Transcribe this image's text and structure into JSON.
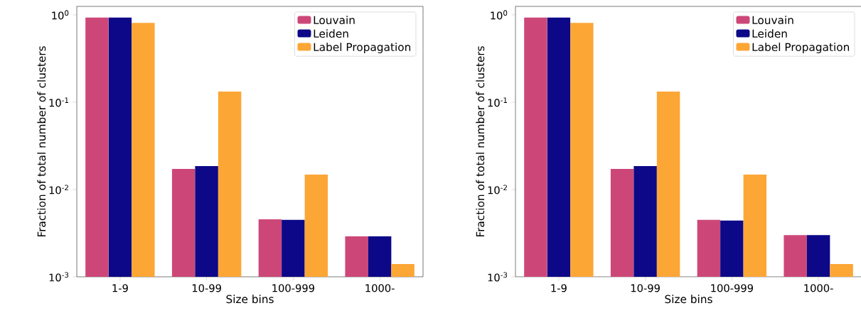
{
  "chart_data": [
    {
      "type": "bar",
      "xlabel": "Size bins",
      "ylabel": "Fraction of total number of clusters",
      "categories": [
        "1-9",
        "10-99",
        "100-999",
        "1000-"
      ],
      "log": "y",
      "ylim": [
        0.001,
        1.25
      ],
      "yticks": [
        {
          "value": 0.001,
          "label": "10$^{-3}$"
        },
        {
          "value": 0.01,
          "label": "10$^{-2}$"
        },
        {
          "value": 0.1,
          "label": "10$^{-1}$"
        },
        {
          "value": 1,
          "label": "10$^{0}$"
        }
      ],
      "legend": "top right",
      "series": [
        {
          "name": "Louvain",
          "color": "#cc4778",
          "values": [
            0.93,
            0.0172,
            0.00456,
            0.0029
          ]
        },
        {
          "name": "Leiden",
          "color": "#0d0887",
          "values": [
            0.93,
            0.0185,
            0.0045,
            0.0029
          ]
        },
        {
          "name": "Label Propagation",
          "color": "#fca636",
          "values": [
            0.81,
            0.132,
            0.0148,
            0.0014
          ]
        }
      ]
    },
    {
      "type": "bar",
      "xlabel": "Size bins",
      "ylabel": "Fraction of total number of clusters",
      "categories": [
        "1-9",
        "10-99",
        "100-999",
        "1000-"
      ],
      "log": "y",
      "ylim": [
        0.001,
        1.25
      ],
      "yticks": [
        {
          "value": 0.001,
          "label": "10$^{-3}$"
        },
        {
          "value": 0.01,
          "label": "10$^{-2}$"
        },
        {
          "value": 0.1,
          "label": "10$^{-1}$"
        },
        {
          "value": 1,
          "label": "10$^{0}$"
        }
      ],
      "legend": "top right",
      "series": [
        {
          "name": "Louvain",
          "color": "#cc4778",
          "values": [
            0.93,
            0.0172,
            0.0045,
            0.003
          ]
        },
        {
          "name": "Leiden",
          "color": "#0d0887",
          "values": [
            0.93,
            0.0185,
            0.0044,
            0.003
          ]
        },
        {
          "name": "Label Propagation",
          "color": "#fca636",
          "values": [
            0.81,
            0.132,
            0.0148,
            0.0014
          ]
        }
      ]
    }
  ]
}
